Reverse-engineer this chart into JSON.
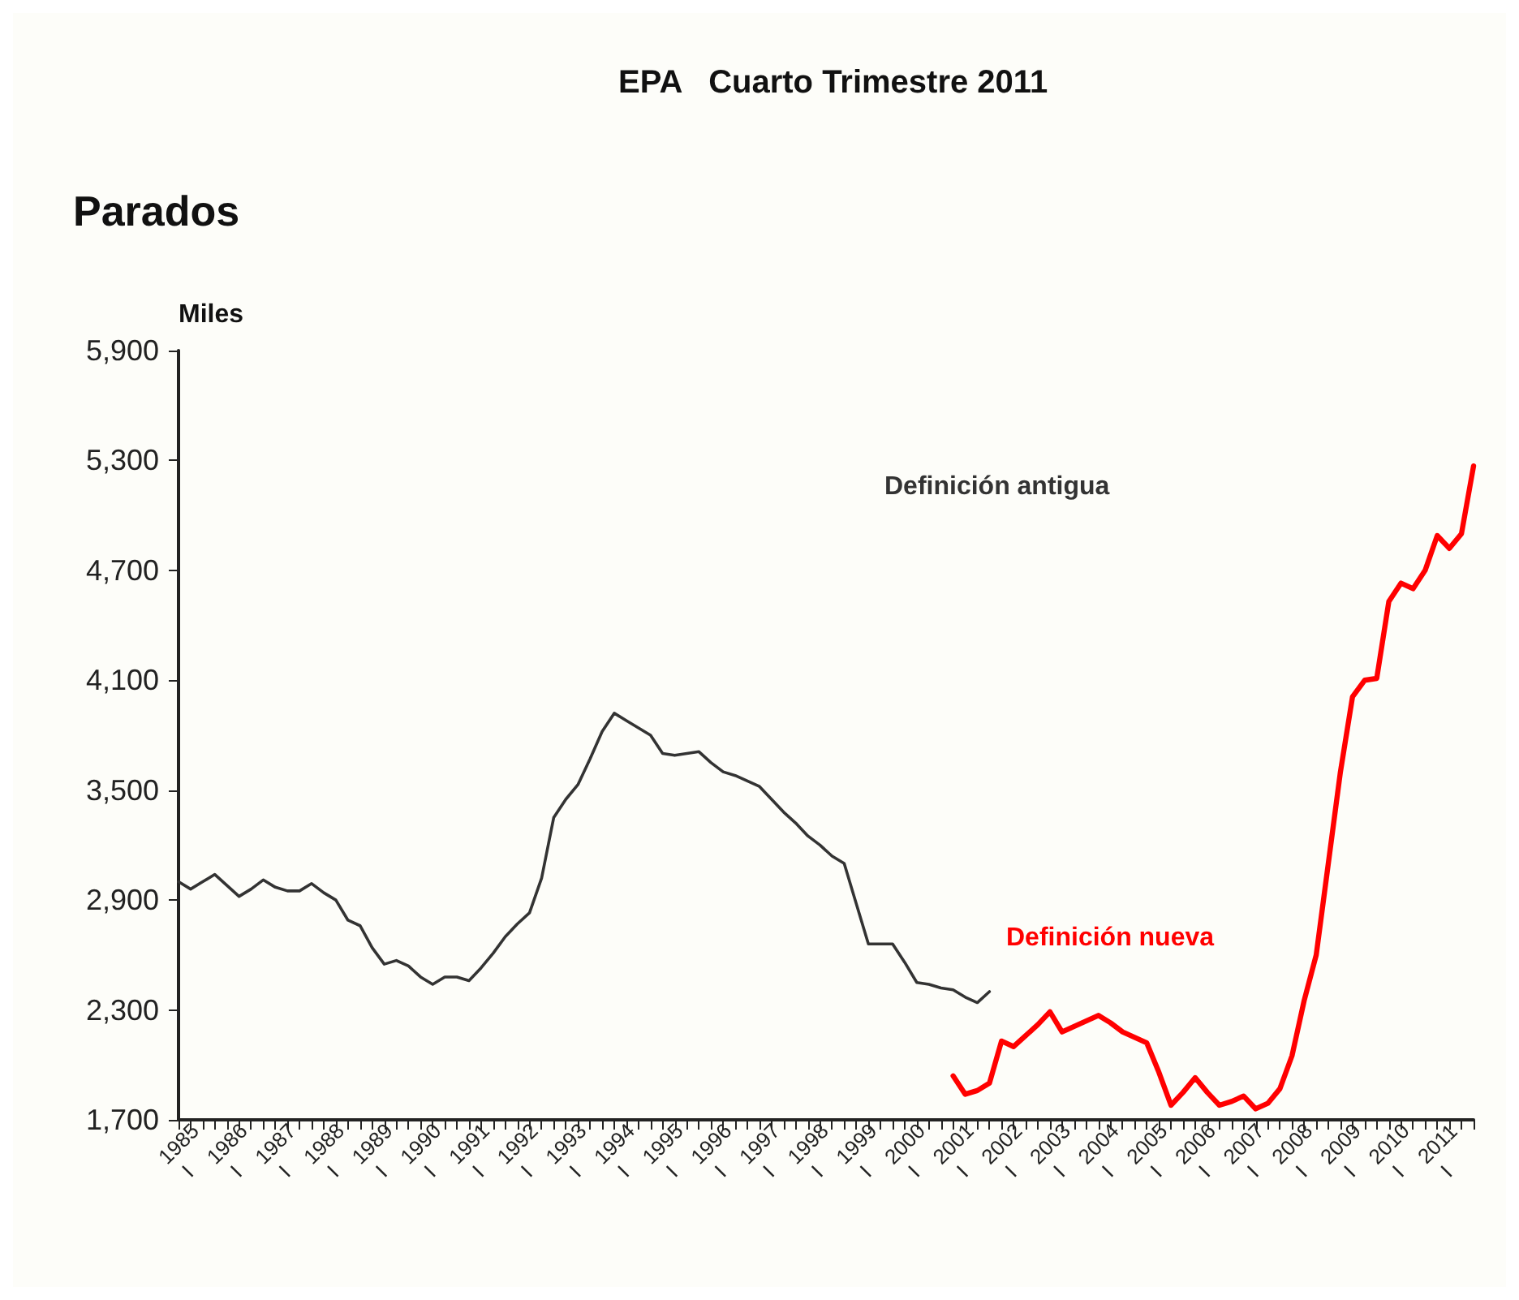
{
  "chart_data": {
    "type": "line",
    "title": "EPA   Cuarto Trimestre 2011",
    "subtitle": "Parados",
    "ylabel": "Miles",
    "categories": [
      "1985\nI",
      null,
      null,
      null,
      "1986\nI",
      null,
      null,
      null,
      "1987\nI",
      null,
      null,
      null,
      "1988\nI",
      null,
      null,
      null,
      "1989\nI",
      null,
      null,
      null,
      "1990\nI",
      null,
      null,
      null,
      "1991\nI",
      null,
      null,
      null,
      "1992\nI",
      null,
      null,
      null,
      "1993\nI",
      null,
      null,
      null,
      "1994\nI",
      null,
      null,
      null,
      "1995\nI",
      null,
      null,
      null,
      "1996\nI",
      null,
      null,
      null,
      "1997\nI",
      null,
      null,
      null,
      "1998\nI",
      null,
      null,
      null,
      "1999\nI",
      null,
      null,
      null,
      "2000\nI",
      null,
      null,
      null,
      "2001\nI",
      null,
      null,
      null,
      "2002\nI",
      null,
      null,
      null,
      "2003\nI",
      null,
      null,
      null,
      "2004\nI",
      null,
      null,
      null,
      "2005\nI",
      null,
      null,
      null,
      "2006\nI",
      null,
      null,
      null,
      "2007\nI",
      null,
      null,
      null,
      "2008\nI",
      null,
      null,
      null,
      "2009\nI",
      null,
      null,
      null,
      "2010\nI",
      null,
      null,
      null,
      "2011\nI",
      null,
      null,
      null
    ],
    "series": [
      {
        "name": "Definición antigua",
        "color": "#333333",
        "values": [
          3000,
          2960,
          3000,
          3040,
          2980,
          2920,
          2960,
          3010,
          2970,
          2950,
          2950,
          2990,
          2940,
          2900,
          2790,
          2760,
          2640,
          2550,
          2570,
          2540,
          2480,
          2440,
          2480,
          2480,
          2460,
          2530,
          2610,
          2700,
          2770,
          2830,
          3020,
          3350,
          3450,
          3530,
          3670,
          3820,
          3920,
          3880,
          3840,
          3800,
          3700,
          3690,
          3700,
          3710,
          3650,
          3600,
          3580,
          3550,
          3520,
          3450,
          3380,
          3320,
          3250,
          3200,
          3140,
          3100,
          2880,
          2660,
          2660,
          2660,
          2560,
          2450,
          2440,
          2420,
          2410,
          2370,
          2340,
          2400,
          null,
          null,
          null,
          null,
          null,
          null,
          null,
          null,
          null,
          null,
          null,
          null,
          null,
          null,
          null,
          null,
          null,
          null,
          null,
          null,
          null,
          null,
          null,
          null,
          null,
          null,
          null,
          null,
          null,
          null,
          null,
          null,
          null,
          null,
          null,
          null,
          null,
          null,
          null,
          null
        ]
      },
      {
        "name": "Definición nueva",
        "color": "#ff0000",
        "values": [
          null,
          null,
          null,
          null,
          null,
          null,
          null,
          null,
          null,
          null,
          null,
          null,
          null,
          null,
          null,
          null,
          null,
          null,
          null,
          null,
          null,
          null,
          null,
          null,
          null,
          null,
          null,
          null,
          null,
          null,
          null,
          null,
          null,
          null,
          null,
          null,
          null,
          null,
          null,
          null,
          null,
          null,
          null,
          null,
          null,
          null,
          null,
          null,
          null,
          null,
          null,
          null,
          null,
          null,
          null,
          null,
          null,
          null,
          null,
          null,
          null,
          null,
          null,
          null,
          1940,
          1840,
          1860,
          1900,
          2130,
          2100,
          2160,
          2220,
          2290,
          2180,
          2210,
          2240,
          2270,
          2230,
          2180,
          2150,
          2120,
          1960,
          1780,
          1850,
          1930,
          1850,
          1780,
          1800,
          1830,
          1760,
          1790,
          1870,
          2050,
          2350,
          2600,
          3100,
          3600,
          4010,
          4100,
          4110,
          4530,
          4630,
          4600,
          4700,
          4890,
          4820,
          4900,
          5270
        ]
      }
    ],
    "ylim": [
      1700,
      5900
    ],
    "yticks": [
      {
        "value": 1700,
        "label": "1,700"
      },
      {
        "value": 2300,
        "label": "2,300"
      },
      {
        "value": 2900,
        "label": "2,900"
      },
      {
        "value": 3500,
        "label": "3,500"
      },
      {
        "value": 4100,
        "label": "4,100"
      },
      {
        "value": 4700,
        "label": "4,700"
      },
      {
        "value": 5300,
        "label": "5,300"
      },
      {
        "value": 5900,
        "label": "5,900"
      }
    ],
    "grid": false,
    "legend": false,
    "marker": "none",
    "line_style": "solid"
  }
}
